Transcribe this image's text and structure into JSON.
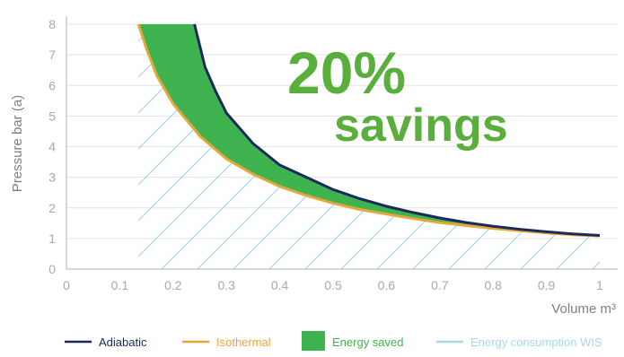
{
  "chart_data": {
    "type": "line",
    "xlabel": "Volume m³",
    "ylabel": "Pressure bar (a)",
    "xlim": [
      0,
      1
    ],
    "ylim": [
      0,
      8
    ],
    "x_ticks": [
      "0",
      "0.1",
      "0.2",
      "0.3",
      "0.4",
      "0.5",
      "0.6",
      "0.7",
      "0.8",
      "0.9",
      "1"
    ],
    "y_ticks": [
      "0",
      "1",
      "2",
      "3",
      "4",
      "5",
      "6",
      "7",
      "8"
    ],
    "grid": "horizontal",
    "series": [
      {
        "name": "Adiabatic",
        "color": "#1b2a5c",
        "x": [
          0.24,
          0.26,
          0.28,
          0.3,
          0.35,
          0.4,
          0.45,
          0.5,
          0.55,
          0.6,
          0.65,
          0.7,
          0.75,
          0.8,
          0.85,
          0.9,
          0.95,
          1.0
        ],
        "y": [
          8.0,
          6.6,
          5.8,
          5.1,
          4.1,
          3.4,
          3.0,
          2.6,
          2.3,
          2.05,
          1.85,
          1.67,
          1.52,
          1.4,
          1.3,
          1.22,
          1.15,
          1.1
        ]
      },
      {
        "name": "Isothermal",
        "color": "#e4a73b",
        "x": [
          0.135,
          0.15,
          0.17,
          0.2,
          0.25,
          0.3,
          0.35,
          0.4,
          0.45,
          0.5,
          0.55,
          0.6,
          0.65,
          0.7,
          0.75,
          0.8,
          0.85,
          0.9,
          0.95,
          1.0
        ],
        "y": [
          8.0,
          7.2,
          6.3,
          5.4,
          4.35,
          3.6,
          3.1,
          2.7,
          2.4,
          2.15,
          1.95,
          1.8,
          1.65,
          1.52,
          1.42,
          1.33,
          1.25,
          1.18,
          1.12,
          1.08
        ]
      }
    ],
    "legend": [
      {
        "label": "Adiabatic",
        "color": "#1b2a5c",
        "kind": "line"
      },
      {
        "label": "Isothermal",
        "color": "#e4a73b",
        "kind": "line"
      },
      {
        "label": "Energy saved",
        "color": "#3fb34f",
        "kind": "box"
      },
      {
        "label": "Energy consumption WIS",
        "color": "#a8d8e8",
        "kind": "line"
      }
    ],
    "legend_position": "bottom",
    "annotation": {
      "line1": "20%",
      "line2": "savings",
      "color": "#5aae3c"
    }
  }
}
